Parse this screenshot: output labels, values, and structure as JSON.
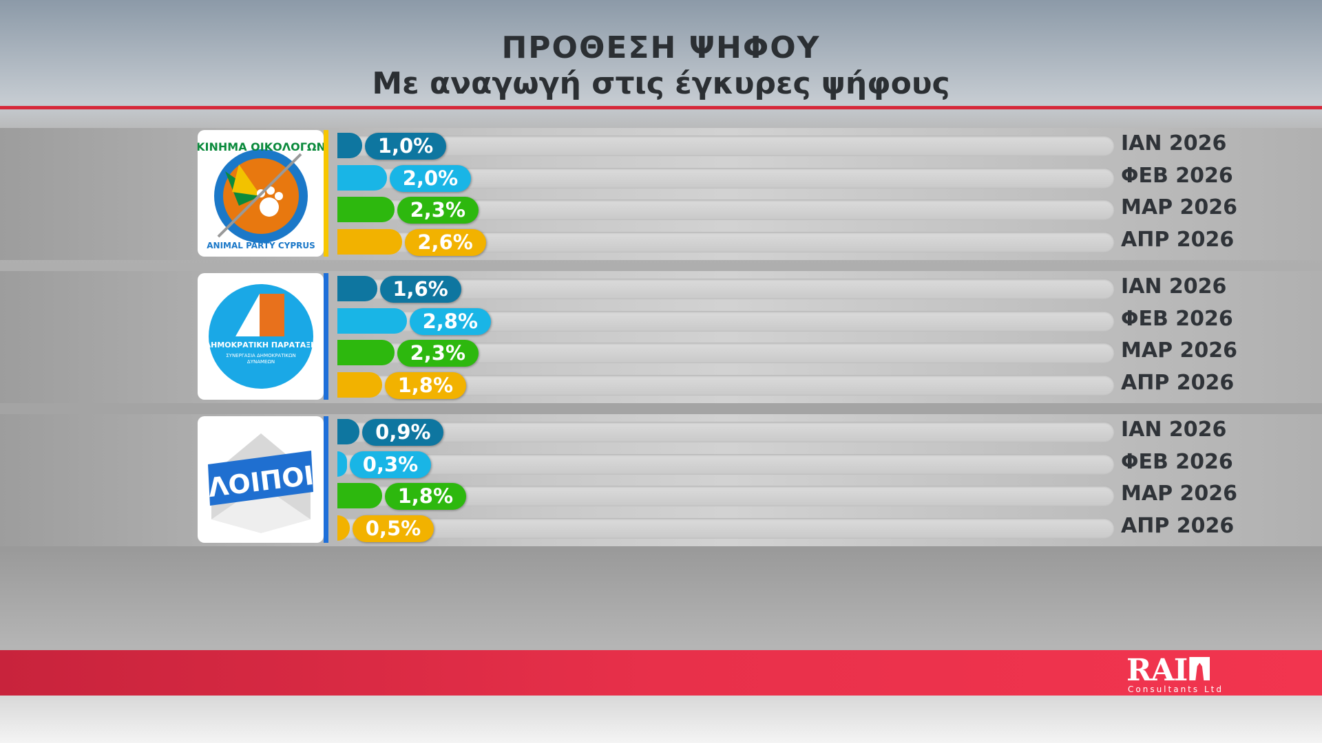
{
  "header": {
    "title": "ΠΡΟΘΕΣΗ ΨΗΦΟΥ",
    "subtitle": "Με αναγωγή στις έγκυρες ψήφους"
  },
  "colors": {
    "ΙΑΝ 2026": "#0e76a0",
    "ΦΕΒ 2026": "#19b5e6",
    "ΜΑΡ 2026": "#2db80e",
    "ΑΠΡ 2026": "#f2b200"
  },
  "chart_data": {
    "type": "bar",
    "orientation": "horizontal",
    "unit": "%",
    "series_labels": [
      "ΙΑΝ 2026",
      "ΦΕΒ 2026",
      "ΜΑΡ 2026",
      "ΑΠΡ 2026"
    ],
    "groups": [
      {
        "party": "ΚΙΝΗΜΑ ΟΙΚΟΛΟΓΩΝ ΣΥΝΕΡΓΑΣΙΑ ΠΟΛΙΤΩΝ / ANIMAL PARTY CYPRUS",
        "logo_text": "ΣΥΝ ΚΙΝΗΜΑ ΟΙΚΟΛΟΓΩΝ · ANIMAL PARTY CYPRUS",
        "stripe": "#f7c600",
        "values": [
          1.0,
          2.0,
          2.3,
          2.6
        ],
        "labels": [
          "1,0%",
          "2,0%",
          "2,3%",
          "2,6%"
        ]
      },
      {
        "party": "ΔΗΜΟΚΡΑΤΙΚΗ ΠΑΡΑΤΑΞΗ",
        "logo_text": "ΔΗΜΟΚΡΑΤΙΚΗ ΠΑΡΑΤΑΞΗ",
        "logo_sub": "ΣΥΝΕΡΓΑΣΙΑ ΔΗΜΟΚΡΑΤΙΚΩΝ ΔΥΝΑΜΕΩΝ",
        "stripe": "#1e6fd9",
        "values": [
          1.6,
          2.8,
          2.3,
          1.8
        ],
        "labels": [
          "1,6%",
          "2,8%",
          "2,3%",
          "1,8%"
        ]
      },
      {
        "party": "ΛΟΙΠΟΙ",
        "logo_text": "ΛΟΙΠΟΙ",
        "stripe": "#1e6fd9",
        "values": [
          0.9,
          0.3,
          1.8,
          0.5
        ],
        "labels": [
          "0,9%",
          "0,3%",
          "1,8%",
          "0,5%"
        ]
      }
    ]
  },
  "footer": {
    "brand": "RAI",
    "brand_sub": "Consultants Ltd"
  }
}
